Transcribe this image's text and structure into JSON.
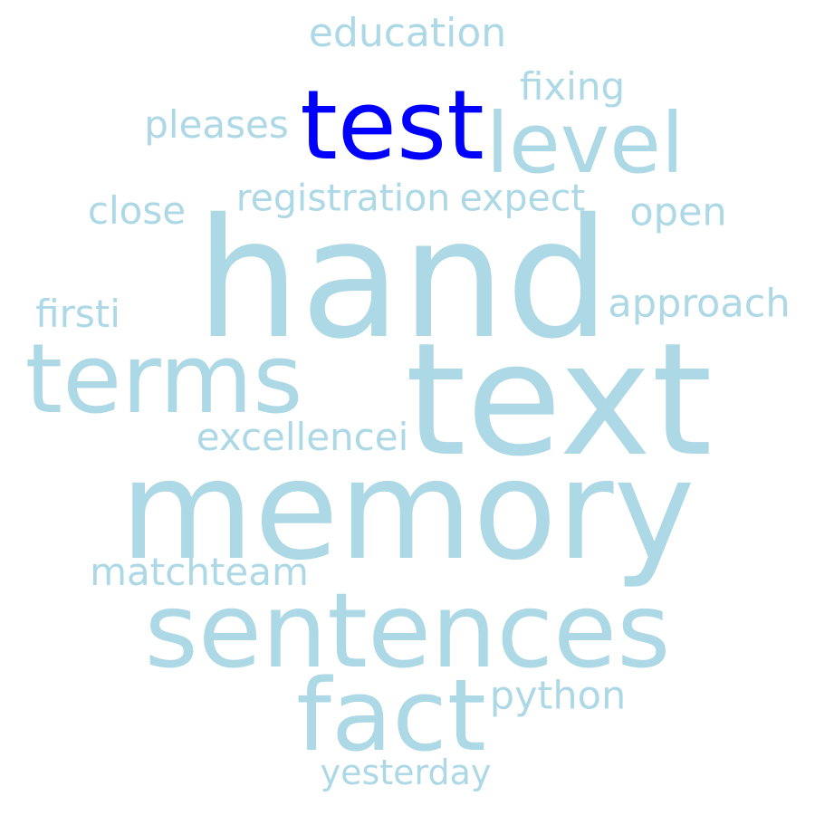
{
  "colors": {
    "base": "#add8e6",
    "highlight": "#0000ff",
    "background": "#ffffff"
  },
  "words": [
    {
      "id": "education",
      "text": "education",
      "color": "#add8e6"
    },
    {
      "id": "fixing",
      "text": "fixing",
      "color": "#add8e6"
    },
    {
      "id": "test",
      "text": "test",
      "color": "#0000ff"
    },
    {
      "id": "level",
      "text": "level",
      "color": "#add8e6"
    },
    {
      "id": "pleases",
      "text": "pleases",
      "color": "#add8e6"
    },
    {
      "id": "registration",
      "text": "registration",
      "color": "#add8e6"
    },
    {
      "id": "expect",
      "text": "expect",
      "color": "#add8e6"
    },
    {
      "id": "close",
      "text": "close",
      "color": "#add8e6"
    },
    {
      "id": "open",
      "text": "open",
      "color": "#add8e6"
    },
    {
      "id": "hand",
      "text": "hand",
      "color": "#add8e6"
    },
    {
      "id": "firsti",
      "text": "firsti",
      "color": "#add8e6"
    },
    {
      "id": "approach",
      "text": "approach",
      "color": "#add8e6"
    },
    {
      "id": "terms",
      "text": "terms",
      "color": "#add8e6"
    },
    {
      "id": "text",
      "text": "text",
      "color": "#add8e6"
    },
    {
      "id": "excellencei",
      "text": "excellencei",
      "color": "#add8e6"
    },
    {
      "id": "memory",
      "text": "memory",
      "color": "#add8e6"
    },
    {
      "id": "matchteam",
      "text": "matchteam",
      "color": "#add8e6"
    },
    {
      "id": "sentences",
      "text": "sentences",
      "color": "#add8e6"
    },
    {
      "id": "python",
      "text": "python",
      "color": "#add8e6"
    },
    {
      "id": "fact",
      "text": "fact",
      "color": "#add8e6"
    },
    {
      "id": "yesterday",
      "text": "yesterday",
      "color": "#add8e6"
    }
  ]
}
